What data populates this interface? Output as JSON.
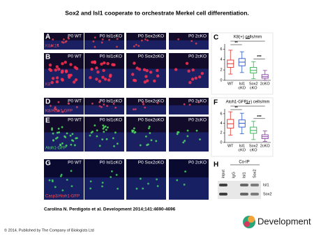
{
  "header": {
    "title": "Sox2 and Isl1 cooperate to orchestrate Merkel cell differentiation."
  },
  "figure": {
    "panels": [
      {
        "label": "A",
        "stain": "K8/K14",
        "conditions": [
          "P0 WT",
          "P0 Isl1cKO",
          "P0 Sox2cKO",
          "P0 2cKO"
        ]
      },
      {
        "label": "B",
        "stain": "K8",
        "conditions": [
          "P0 WT",
          "P0 Isl1cKO",
          "P0 Sox2cKO",
          "P0 2cKO"
        ]
      },
      {
        "label": "D",
        "stain": "K8/Atoh1-GFP",
        "conditions": [
          "P0 WT",
          "P0 Isl1cKO",
          "P0 Sox2cKO",
          "P0 2cKO"
        ]
      },
      {
        "label": "E",
        "stain": "Atoh1-GFP",
        "conditions": [
          "P0 WT",
          "P0 Isl1cKO",
          "P0 Sox2cKO",
          "P0 2cKO"
        ]
      },
      {
        "label": "G",
        "stain": "Casp3/Atoh1-GFP",
        "conditions": [
          "P0 WT",
          "P0 Isl1cKO",
          "P0 Sox2cKO",
          "P0 2cKO"
        ]
      }
    ],
    "charts": [
      {
        "label": "C",
        "type": "box",
        "title": "K8(+) cells/mm",
        "categories": [
          [
            "WT"
          ],
          [
            "Isl1",
            "cKO"
          ],
          [
            "Sox2",
            "cKO"
          ],
          [
            "2cKO"
          ]
        ],
        "colors": [
          "#e0302a",
          "#2a56c8",
          "#2fb34a",
          "#8a3fa8"
        ],
        "boxes": [
          {
            "min": 1.2,
            "q1": 2.5,
            "median": 3.2,
            "q3": 3.9,
            "max": 5.8
          },
          {
            "min": 1.5,
            "q1": 2.8,
            "median": 3.5,
            "q3": 4.2,
            "max": 5.5
          },
          {
            "min": 0.3,
            "q1": 1.4,
            "median": 1.9,
            "q3": 2.5,
            "max": 3.6
          },
          {
            "min": 0,
            "q1": 0.4,
            "median": 0.7,
            "q3": 1.1,
            "max": 1.9
          }
        ],
        "ylim": [
          0,
          7
        ],
        "yticks": [
          0,
          2,
          4,
          6
        ],
        "significance": [
          "***",
          "**",
          "***"
        ]
      },
      {
        "label": "F",
        "type": "box",
        "title": "Atoh1-GFP(+) cells/mm",
        "categories": [
          [
            "WT"
          ],
          [
            "Isl1",
            "cKO"
          ],
          [
            "Sox2",
            "cKO"
          ],
          [
            "2cKO"
          ]
        ],
        "colors": [
          "#e0302a",
          "#2a56c8",
          "#2fb34a",
          "#8a3fa8"
        ],
        "boxes": [
          {
            "min": 1.5,
            "q1": 3.0,
            "median": 3.9,
            "q3": 4.8,
            "max": 6.4
          },
          {
            "min": 1.8,
            "q1": 3.2,
            "median": 4.0,
            "q3": 4.7,
            "max": 6.1
          },
          {
            "min": 0.6,
            "q1": 1.9,
            "median": 2.5,
            "q3": 3.2,
            "max": 4.4
          },
          {
            "min": 0.2,
            "q1": 0.8,
            "median": 1.2,
            "q3": 1.6,
            "max": 2.4
          }
        ],
        "ylim": [
          0,
          7
        ],
        "yticks": [
          0,
          2,
          4,
          6
        ],
        "significance": [
          "***",
          "**",
          "***"
        ]
      }
    ],
    "blot": {
      "label": "H",
      "title": "Co-IP",
      "lanes": [
        "input",
        "IgG",
        "Isl1",
        "Sox2"
      ],
      "rows": [
        "Isl1",
        "Sox2"
      ]
    }
  },
  "citation": "Carolina N. Perdigoto et al. Development 2014;141:4690-4696",
  "footer": "© 2014. Published by The Company of Biologists Ltd",
  "logo": "Development"
}
